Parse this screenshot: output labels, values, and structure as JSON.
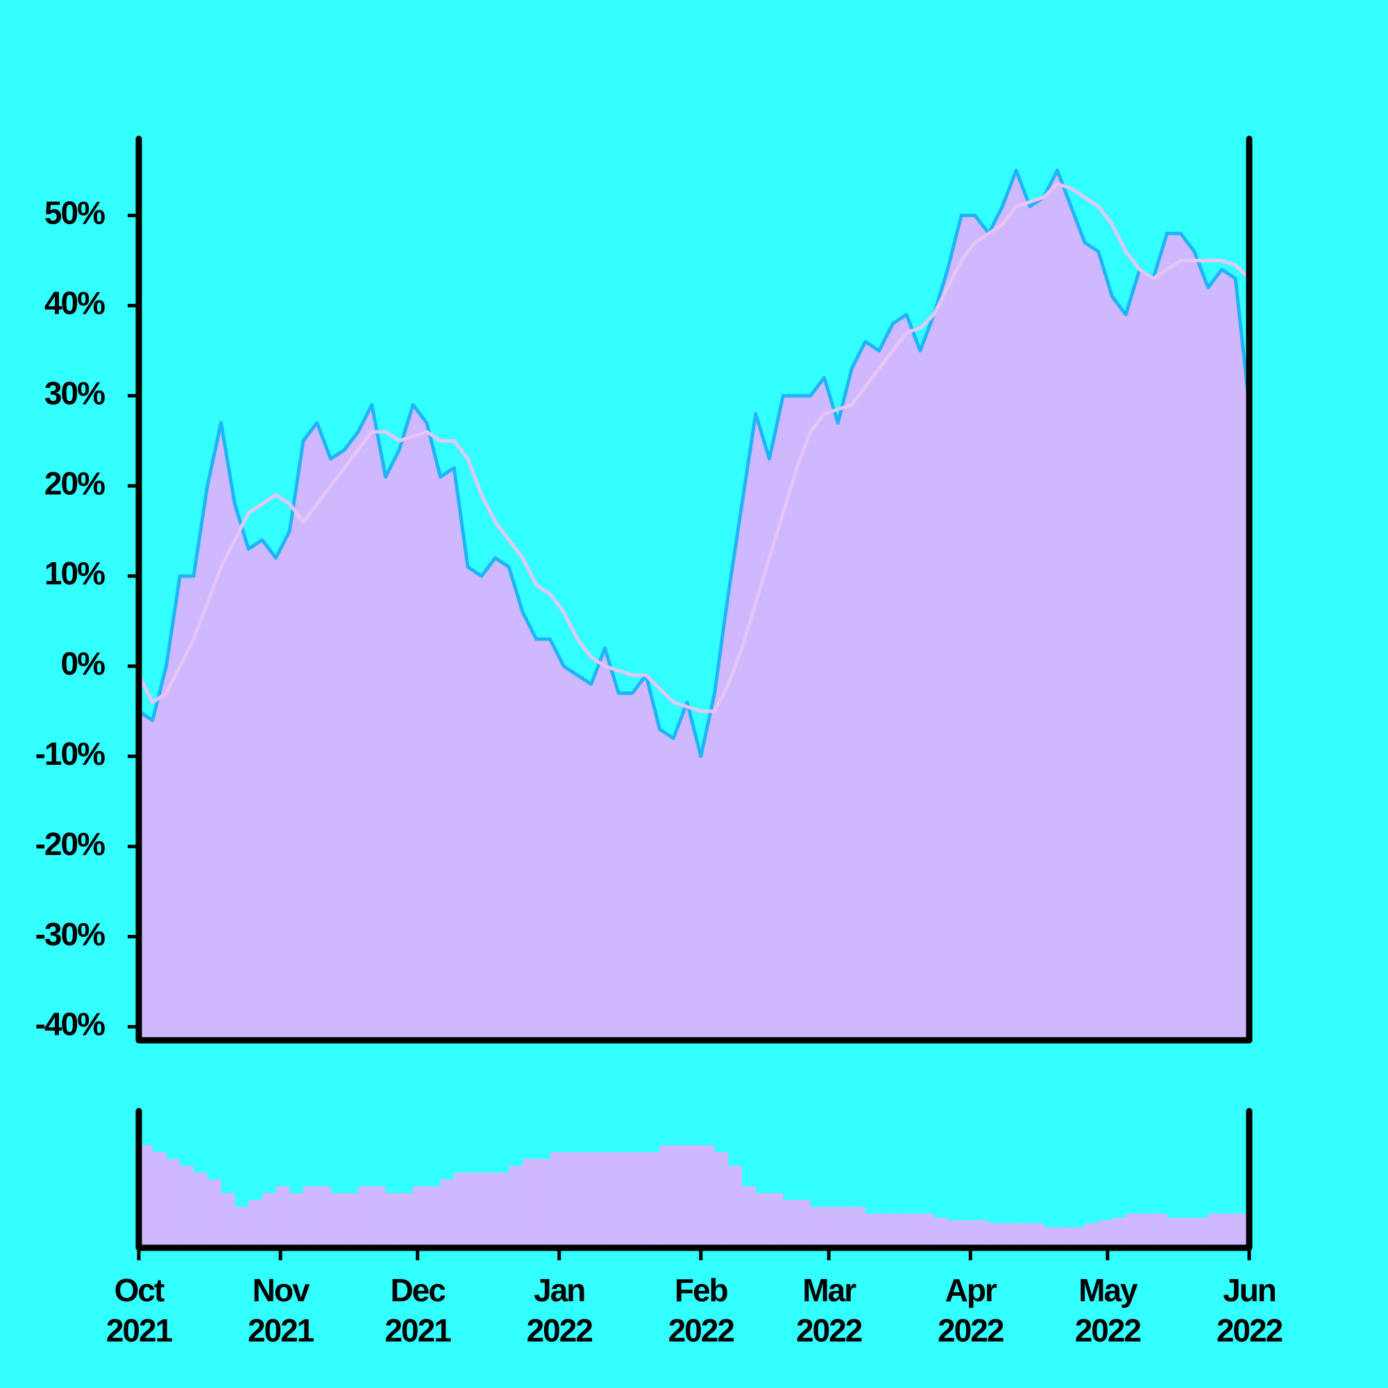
{
  "chart_data": [
    {
      "type": "area",
      "x": [
        0,
        3,
        6,
        9,
        12,
        15,
        18,
        21,
        24,
        27,
        30,
        33,
        36,
        39,
        42,
        45,
        48,
        51,
        54,
        57,
        60,
        63,
        66,
        69,
        72,
        75,
        78,
        81,
        84,
        87,
        90,
        93,
        96,
        99,
        102,
        105,
        108,
        111,
        114,
        117,
        120,
        123,
        126,
        129,
        132,
        135,
        138,
        141,
        144,
        147,
        150,
        153,
        156,
        159,
        162,
        165,
        168,
        171,
        174,
        177,
        180,
        183,
        186,
        189,
        192,
        195,
        198,
        201,
        204,
        207,
        210,
        213,
        216,
        219,
        222,
        225,
        228,
        231,
        234,
        237,
        240,
        243
      ],
      "series": [
        {
          "color": "#1fb4f7",
          "values": [
            -5,
            -6,
            0,
            10,
            10,
            20,
            27,
            18,
            13,
            14,
            12,
            15,
            25,
            27,
            23,
            24,
            26,
            29,
            21,
            24,
            29,
            27,
            21,
            22,
            11,
            10,
            12,
            11,
            6,
            3,
            3,
            0,
            -1,
            -2,
            2,
            -3,
            -3,
            -1,
            -7,
            -8,
            -4,
            -10,
            -3,
            8,
            18,
            28,
            23,
            30,
            30,
            30,
            32,
            27,
            33,
            36,
            35,
            38,
            39,
            35,
            39,
            44,
            50,
            50,
            48,
            51,
            55,
            51,
            52,
            55,
            51,
            47,
            46,
            41,
            39,
            44,
            43,
            48,
            48,
            46,
            42,
            44,
            43,
            29
          ]
        },
        {
          "color": "#e6c4f6",
          "values": [
            -1,
            -4,
            -3,
            0,
            3,
            7,
            11,
            14,
            17,
            18,
            19,
            18,
            16,
            18,
            20,
            22,
            24,
            26,
            26,
            25,
            25.5,
            26,
            25,
            25,
            23,
            19,
            16,
            14,
            12,
            9,
            8,
            6,
            3,
            1,
            0,
            -0.5,
            -1,
            -1,
            -2.5,
            -4,
            -4.5,
            -5,
            -5,
            -2,
            2,
            7,
            12,
            17,
            22,
            26,
            28,
            28.5,
            29,
            31,
            33,
            35,
            37,
            37.5,
            39,
            42,
            45,
            47,
            48,
            49,
            51,
            51.5,
            52,
            53.5,
            53,
            52,
            51,
            49,
            46,
            44,
            43,
            44,
            45,
            45,
            45,
            45,
            44.5,
            43
          ]
        }
      ],
      "fill": "#d0b8ff",
      "xlim": [
        0,
        243
      ],
      "ylim": [
        -41.5,
        58.5
      ],
      "yticks": [
        {
          "value": -40,
          "label": "-40%"
        },
        {
          "value": -30,
          "label": "-30%"
        },
        {
          "value": -20,
          "label": "-20%"
        },
        {
          "value": -10,
          "label": "-10%"
        },
        {
          "value": 0,
          "label": "0%"
        },
        {
          "value": 10,
          "label": "10%"
        },
        {
          "value": 20,
          "label": "20%"
        },
        {
          "value": 30,
          "label": "30%"
        },
        {
          "value": 40,
          "label": "40%"
        },
        {
          "value": 50,
          "label": "50%"
        }
      ]
    },
    {
      "type": "bar",
      "x": [
        0,
        3,
        6,
        9,
        12,
        15,
        18,
        21,
        24,
        27,
        30,
        33,
        36,
        39,
        42,
        45,
        48,
        51,
        54,
        57,
        60,
        63,
        66,
        69,
        72,
        75,
        78,
        81,
        84,
        87,
        90,
        93,
        96,
        99,
        102,
        105,
        108,
        111,
        114,
        117,
        120,
        123,
        126,
        129,
        132,
        135,
        138,
        141,
        144,
        147,
        150,
        153,
        156,
        159,
        162,
        165,
        168,
        171,
        174,
        177,
        180,
        183,
        186,
        189,
        192,
        195,
        198,
        201,
        204,
        207,
        210,
        213,
        216,
        219,
        222,
        225,
        228,
        231,
        234,
        237,
        240,
        243
      ],
      "values": [
        75,
        70,
        65,
        60,
        55,
        50,
        40,
        30,
        35,
        40,
        45,
        40,
        45,
        45,
        40,
        40,
        45,
        45,
        40,
        40,
        45,
        45,
        50,
        55,
        55,
        55,
        55,
        60,
        65,
        65,
        70,
        70,
        70,
        70,
        70,
        70,
        70,
        70,
        75,
        75,
        75,
        75,
        70,
        60,
        45,
        40,
        40,
        35,
        35,
        30,
        30,
        30,
        30,
        25,
        25,
        25,
        25,
        25,
        22,
        20,
        20,
        20,
        18,
        18,
        18,
        18,
        15,
        15,
        15,
        18,
        20,
        22,
        25,
        25,
        25,
        22,
        22,
        22,
        25,
        25,
        25,
        25
      ],
      "color": "#d0b8ff",
      "xlim": [
        0,
        243
      ],
      "ylim": [
        0,
        100
      ],
      "xticks": [
        {
          "value": 0,
          "label": "Oct\n2021"
        },
        {
          "value": 31,
          "label": "Nov\n2021"
        },
        {
          "value": 61,
          "label": "Dec\n2021"
        },
        {
          "value": 92,
          "label": "Jan\n2022"
        },
        {
          "value": 123,
          "label": "Feb\n2022"
        },
        {
          "value": 151,
          "label": "Mar\n2022"
        },
        {
          "value": 182,
          "label": "Apr\n2022"
        },
        {
          "value": 212,
          "label": "May\n2022"
        },
        {
          "value": 243,
          "label": "Jun\n2022"
        }
      ]
    }
  ]
}
